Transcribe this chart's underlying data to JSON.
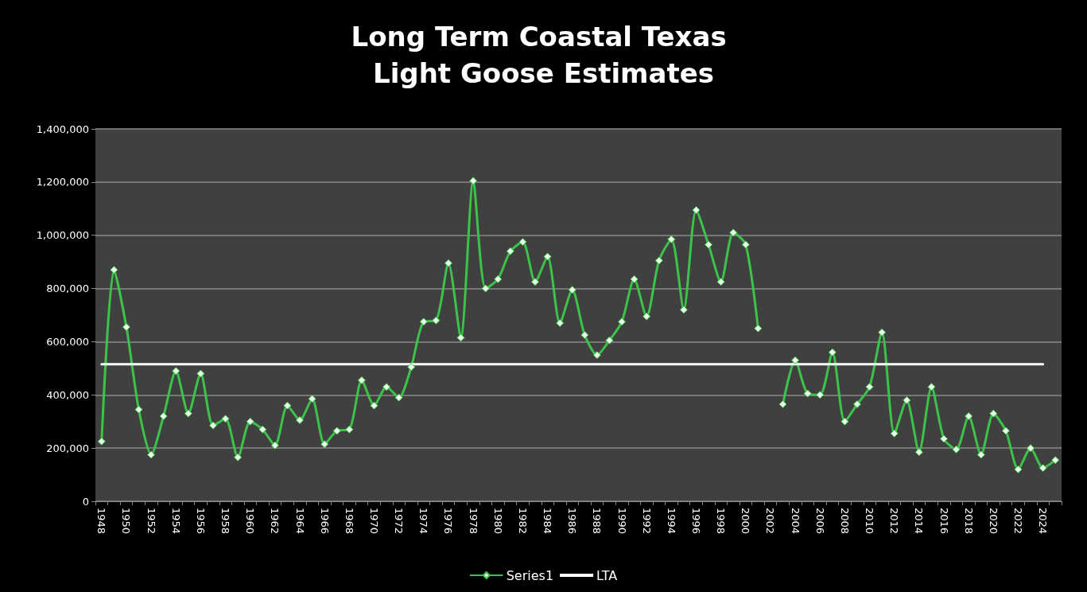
{
  "chart_data": {
    "type": "line",
    "title": "Long Term Coastal Texas Light Goose Estimates",
    "categories": [
      "1948",
      null,
      "1950",
      null,
      "1952",
      null,
      "1954",
      null,
      "1956",
      null,
      "1958",
      null,
      "1960",
      null,
      "1962",
      null,
      "1964",
      null,
      "1966",
      null,
      "1968",
      null,
      "1970",
      null,
      "1972",
      null,
      "1974",
      null,
      "1976",
      null,
      "1978",
      null,
      "1980",
      null,
      "1982",
      null,
      "1984",
      null,
      "1986",
      null,
      "1988",
      null,
      "1990",
      null,
      "1992",
      null,
      "1994",
      null,
      "1996",
      null,
      "1998",
      null,
      "2000",
      null,
      "2002",
      null,
      "2004",
      null,
      "2006",
      null,
      "2008",
      null,
      "2010",
      null,
      "2012",
      null,
      "2014",
      null,
      "2016",
      null,
      "2018",
      null,
      "2020",
      null,
      "2022",
      null,
      "2024",
      null
    ],
    "series": [
      {
        "name": "Series1",
        "color": "#3cc34a",
        "marker": "diamond",
        "values": [
          225000,
          870000,
          655000,
          345000,
          175000,
          320000,
          490000,
          330000,
          480000,
          285000,
          310000,
          165000,
          300000,
          270000,
          210000,
          360000,
          305000,
          385000,
          215000,
          265000,
          270000,
          455000,
          360000,
          430000,
          390000,
          505000,
          675000,
          680000,
          895000,
          615000,
          1205000,
          800000,
          835000,
          940000,
          975000,
          825000,
          920000,
          670000,
          795000,
          625000,
          550000,
          605000,
          675000,
          835000,
          695000,
          905000,
          985000,
          720000,
          1095000,
          965000,
          825000,
          1010000,
          965000,
          650000,
          null,
          365000,
          530000,
          405000,
          400000,
          560000,
          300000,
          365000,
          430000,
          635000,
          255000,
          380000,
          185000,
          430000,
          235000,
          195000,
          320000,
          175000,
          330000,
          265000,
          120000,
          200000,
          125000,
          155000
        ]
      },
      {
        "name": "LTA",
        "color": "#ffffff",
        "marker": "none",
        "values": [
          515000,
          515000,
          515000,
          515000,
          515000,
          515000,
          515000,
          515000,
          515000,
          515000,
          515000,
          515000,
          515000,
          515000,
          515000,
          515000,
          515000,
          515000,
          515000,
          515000,
          515000,
          515000,
          515000,
          515000,
          515000,
          515000,
          515000,
          515000,
          515000,
          515000,
          515000,
          515000,
          515000,
          515000,
          515000,
          515000,
          515000,
          515000,
          515000,
          515000,
          515000,
          515000,
          515000,
          515000,
          515000,
          515000,
          515000,
          515000,
          515000,
          515000,
          515000,
          515000,
          515000,
          515000,
          515000,
          515000,
          515000,
          515000,
          515000,
          515000,
          515000,
          515000,
          515000,
          515000,
          515000,
          515000,
          515000,
          515000,
          515000,
          515000,
          515000,
          515000,
          515000,
          515000,
          515000,
          515000,
          515000,
          null
        ]
      }
    ],
    "ylim": [
      0,
      1400000
    ],
    "yticks": [
      0,
      {
        "value": 200000,
        "label": "200,000"
      },
      {
        "value": 400000,
        "label": "400,000"
      },
      {
        "value": 600000,
        "label": "600,000"
      },
      {
        "value": 800000,
        "label": "800,000"
      },
      {
        "value": 1000000,
        "label": "1,000,000"
      },
      {
        "value": 1200000,
        "label": "1,200,000"
      },
      {
        "value": 1400000,
        "label": "1,400,000"
      }
    ],
    "grid": "y",
    "legend": "bottom",
    "line_style": "solid"
  }
}
